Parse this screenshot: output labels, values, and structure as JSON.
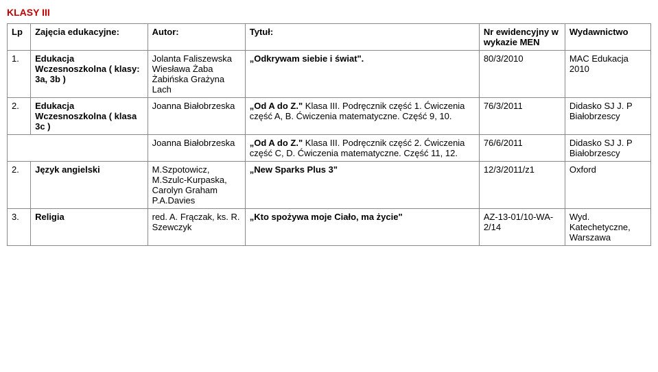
{
  "page": {
    "title": "KLASY III"
  },
  "headers": {
    "lp": "Lp",
    "zajecia": "Zajęcia edukacyjne:",
    "autor": "Autor:",
    "tytul": "Tytuł:",
    "nr": "Nr ewidencyjny w wykazie MEN",
    "wyd": "Wydawnictwo"
  },
  "rows": {
    "r1": {
      "lp": "1.",
      "zajecia": "Edukacja Wczesnoszkolna ( klasy: 3a, 3b )",
      "autor": " Jolanta Faliszewska Wiesława Żaba Żabińska Grażyna Lach",
      "tytul_bold": "„Odkrywam siebie i świat\".",
      "nr": "80/3/2010",
      "wyd": "MAC Edukacja 2010"
    },
    "r2": {
      "lp": "2.",
      "zajecia": "Edukacja Wczesnoszkolna ( klasa 3c )",
      "autor": "Joanna Białobrzeska",
      "tytul_bold": "„Od A do Z.\"",
      "tytul_rest": " Klasa III. Podręcznik część 1. Ćwiczenia część A, B. Ćwiczenia matematyczne. Część 9, 10.",
      "nr": "76/3/2011",
      "wyd": "Didasko SJ J. P Białobrzescy"
    },
    "r3": {
      "autor": "Joanna Białobrzeska",
      "tytul_bold": "„Od A do Z.\"",
      "tytul_rest": " Klasa III. Podręcznik część 2. Ćwiczenia część C, D. Ćwiczenia matematyczne. Część 11, 12.",
      "nr": "76/6/2011",
      "wyd": "Didasko SJ J. P Białobrzescy"
    },
    "r4": {
      "lp": "2.",
      "zajecia": "Język angielski",
      "autor": "M.Szpotowicz, M.Szulc-Kurpaska, Carolyn Graham P.A.Davies",
      "tytul_bold": "„New Sparks Plus 3\"",
      "nr": "12/3/2011/z1",
      "wyd": "Oxford"
    },
    "r5": {
      "lp": "3.",
      "zajecia": "Religia",
      "autor": "red. A. Frączak, ks. R. Szewczyk",
      "tytul_bold": "„Kto spożywa moje Ciało, ma życie\"",
      "nr": "AZ-13-01/10-WA-2/14",
      "wyd": "Wyd. Katechetyczne, Warszawa"
    }
  }
}
